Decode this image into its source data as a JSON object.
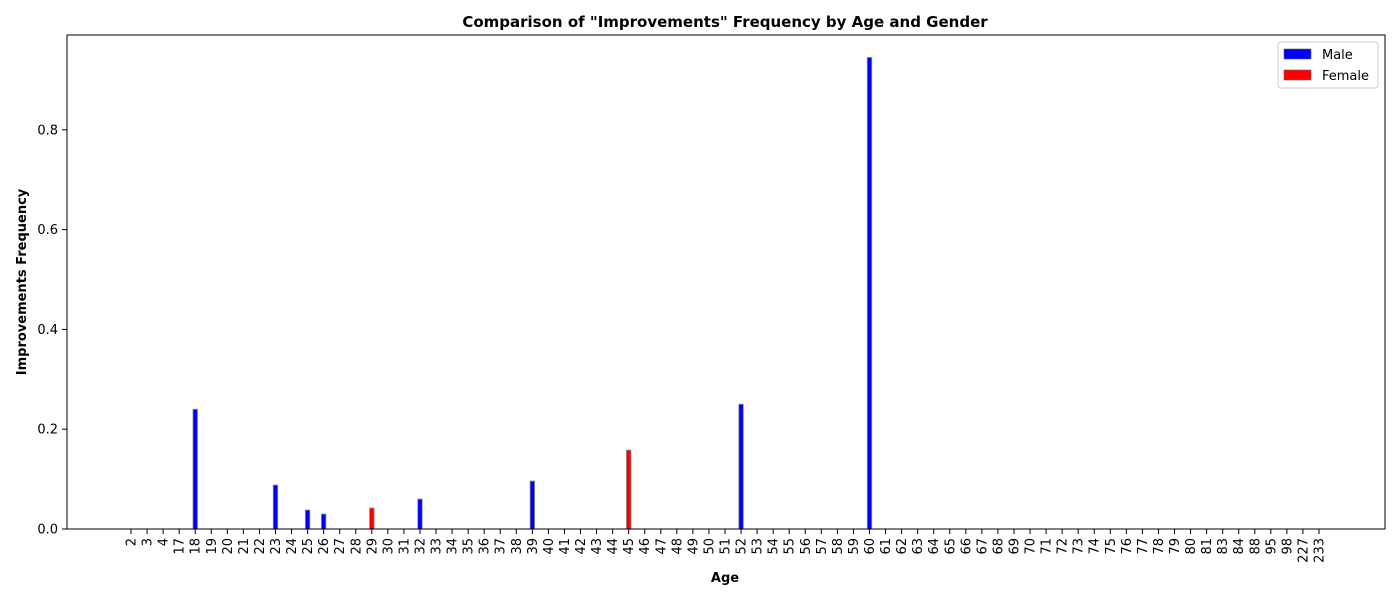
{
  "chart_data": {
    "type": "bar",
    "title": "Comparison of \"Improvements\" Frequency by Age and Gender",
    "xlabel": "Age",
    "ylabel": "Improvements Frequency",
    "categories": [
      "2",
      "3",
      "4",
      "17",
      "18",
      "19",
      "20",
      "21",
      "22",
      "23",
      "24",
      "25",
      "26",
      "27",
      "28",
      "29",
      "30",
      "31",
      "32",
      "33",
      "34",
      "35",
      "36",
      "37",
      "38",
      "39",
      "40",
      "41",
      "42",
      "43",
      "44",
      "45",
      "46",
      "47",
      "48",
      "49",
      "50",
      "51",
      "52",
      "53",
      "54",
      "55",
      "56",
      "57",
      "58",
      "59",
      "60",
      "61",
      "62",
      "63",
      "64",
      "65",
      "66",
      "67",
      "68",
      "69",
      "70",
      "71",
      "72",
      "73",
      "74",
      "75",
      "76",
      "77",
      "78",
      "79",
      "80",
      "81",
      "83",
      "84",
      "88",
      "95",
      "98",
      "227",
      "233"
    ],
    "series": [
      {
        "name": "Male",
        "color": "#0000ff",
        "values": [
          0,
          0,
          0,
          0,
          0.24,
          0,
          0,
          0,
          0,
          0.088,
          0,
          0.038,
          0.03,
          0,
          0,
          0,
          0,
          0,
          0.06,
          0,
          0,
          0,
          0,
          0,
          0,
          0.096,
          0,
          0,
          0,
          0,
          0,
          0,
          0,
          0,
          0,
          0,
          0,
          0,
          0.25,
          0,
          0,
          0,
          0,
          0,
          0,
          0,
          0.945,
          0,
          0,
          0,
          0,
          0,
          0,
          0,
          0,
          0,
          0,
          0,
          0,
          0,
          0,
          0,
          0,
          0,
          0,
          0,
          0,
          0,
          0,
          0,
          0,
          0,
          0,
          0,
          0
        ]
      },
      {
        "name": "Female",
        "color": "#ff0000",
        "values": [
          0,
          0,
          0,
          0,
          0,
          0,
          0,
          0,
          0,
          0,
          0,
          0,
          0,
          0,
          0,
          0.042,
          0,
          0,
          0,
          0,
          0,
          0,
          0,
          0,
          0,
          0,
          0,
          0,
          0,
          0,
          0,
          0.158,
          0,
          0,
          0,
          0,
          0,
          0,
          0,
          0,
          0,
          0,
          0,
          0,
          0,
          0,
          0,
          0,
          0,
          0,
          0,
          0,
          0,
          0,
          0,
          0,
          0,
          0,
          0,
          0,
          0,
          0,
          0,
          0,
          0,
          0,
          0,
          0,
          0,
          0,
          0,
          0,
          0,
          0,
          0
        ]
      }
    ],
    "ylim": [
      0,
      0.99
    ],
    "yticks": [
      0.0,
      0.2,
      0.4,
      0.6,
      0.8
    ],
    "ytick_labels": [
      "0.0",
      "0.2",
      "0.4",
      "0.6",
      "0.8"
    ],
    "grid": false,
    "legend_position": "top-right"
  }
}
